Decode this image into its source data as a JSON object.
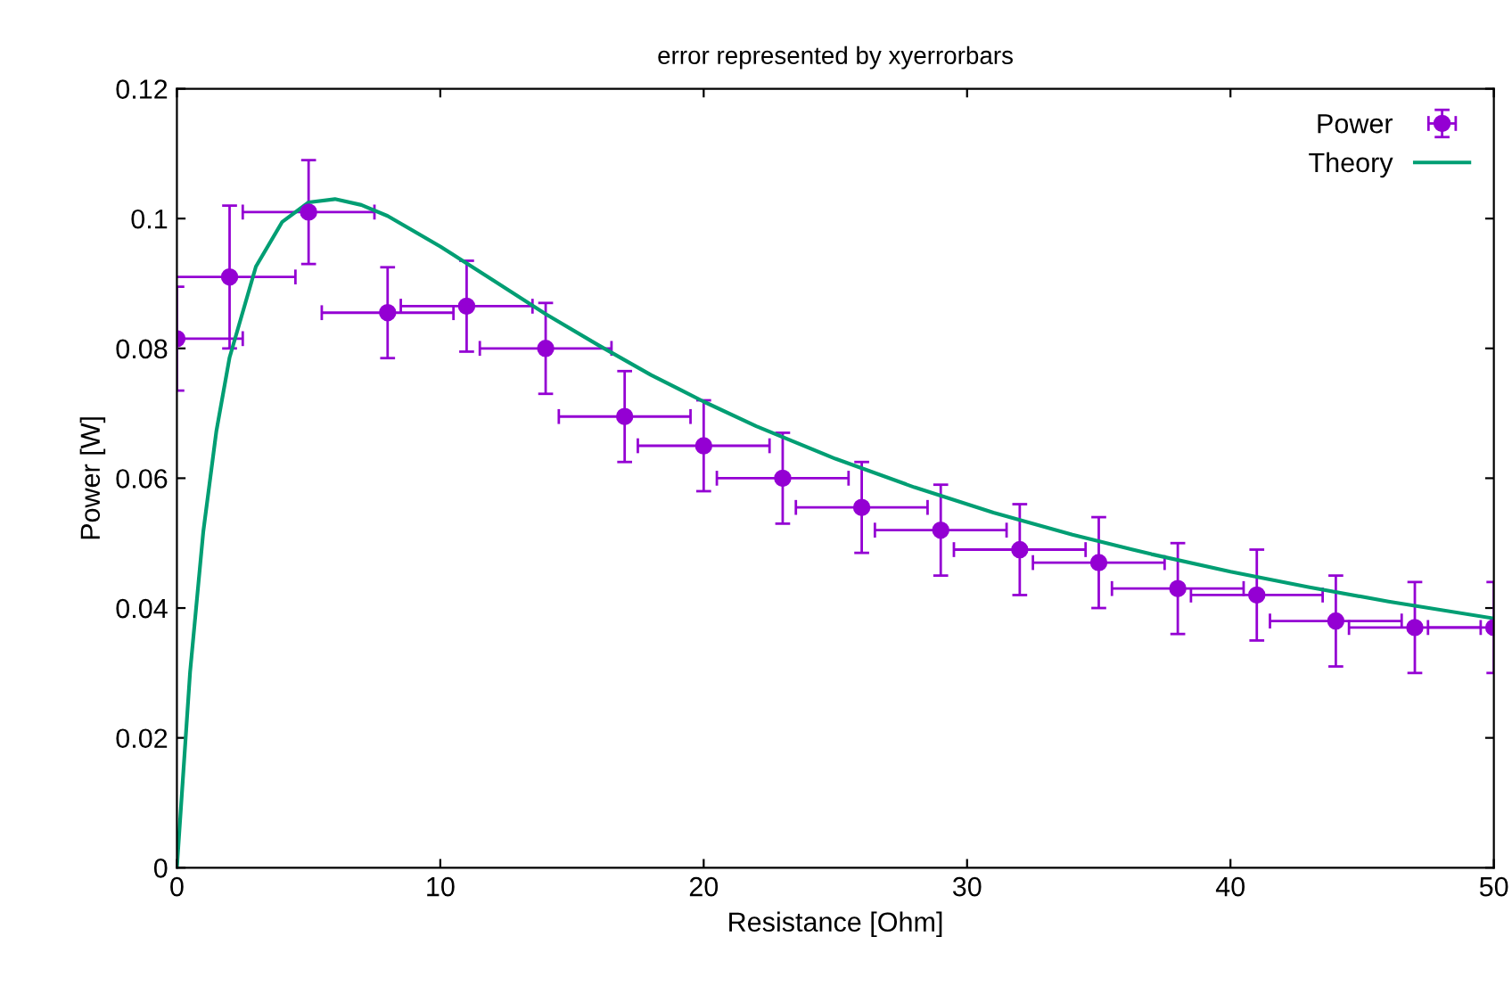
{
  "chart_data": {
    "type": "scatter",
    "title": "error represented by xyerrorbars",
    "xlabel": "Resistance [Ohm]",
    "ylabel": "Power [W]",
    "xlim": [
      0,
      50
    ],
    "xticks": [
      0,
      10,
      20,
      30,
      40,
      50
    ],
    "ylim": [
      0,
      0.12
    ],
    "yticks": [
      0,
      0.02,
      0.04,
      0.06,
      0.08,
      0.1,
      0.12
    ],
    "grid": false,
    "legend": "top right",
    "marker": "circle",
    "series": [
      {
        "name": "Power",
        "color": "#9400d3",
        "x": [
          0,
          2,
          5,
          8,
          11,
          14,
          17,
          20,
          23,
          26,
          29,
          32,
          35,
          38,
          41,
          44,
          47,
          50
        ],
        "values": [
          0.0815,
          0.091,
          0.101,
          0.0855,
          0.0865,
          0.08,
          0.0695,
          0.065,
          0.06,
          0.0555,
          0.052,
          0.049,
          0.047,
          0.043,
          0.042,
          0.038,
          0.037,
          0.037
        ],
        "errors": [
          0.008,
          0.011,
          0.008,
          0.007,
          0.007,
          0.007,
          0.007,
          0.007,
          0.007,
          0.007,
          0.007,
          0.007,
          0.007,
          0.007,
          0.007,
          0.007,
          0.007,
          0.007
        ],
        "xerrors": [
          [
            0,
            2.5
          ],
          2.5,
          2.5,
          2.5,
          2.5,
          2.5,
          2.5,
          2.5,
          2.5,
          2.5,
          2.5,
          2.5,
          2.5,
          2.5,
          2.5,
          2.5,
          2.5,
          [
            47.5,
            50
          ]
        ]
      },
      {
        "name": "Theory",
        "type": "line",
        "color": "#009e73",
        "marker": "none",
        "x": [
          0,
          0.5,
          1,
          1.5,
          2,
          3,
          4,
          5,
          6,
          7,
          8,
          10,
          12,
          14,
          16,
          18,
          20,
          22,
          25,
          28,
          31,
          34,
          37,
          40,
          43,
          46,
          50
        ],
        "values": [
          0,
          0.0301,
          0.0517,
          0.0673,
          0.0786,
          0.0926,
          0.0995,
          0.1025,
          0.103,
          0.1021,
          0.1004,
          0.0957,
          0.0905,
          0.0853,
          0.0805,
          0.0759,
          0.0718,
          0.068,
          0.063,
          0.0586,
          0.0547,
          0.0513,
          0.0483,
          0.0456,
          0.0432,
          0.041,
          0.0384
        ]
      }
    ]
  }
}
